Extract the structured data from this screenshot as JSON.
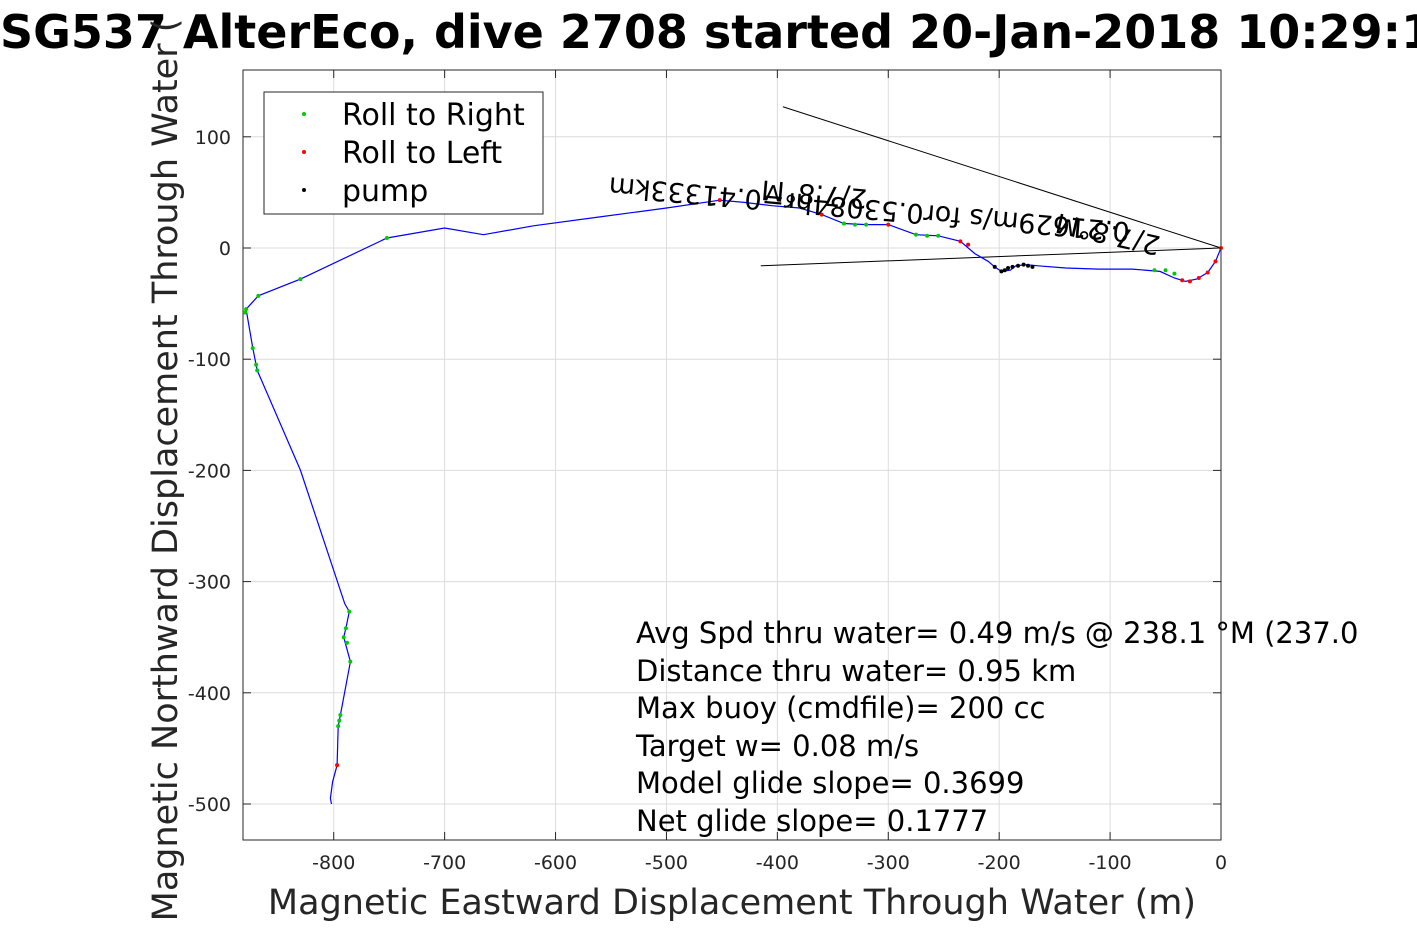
{
  "chart_data": {
    "type": "scatter",
    "title": "SG537 AlterEco, dive 2708 started 20-Jan-2018 10:29:1",
    "xlabel": "Magnetic Eastward Displacement Through Water (m)",
    "ylabel": "Magnetic Northward Displacement Through Water (",
    "xlim": [
      -880,
      0
    ],
    "ylim": [
      -530,
      160
    ],
    "xticks": [
      "-800",
      "-700",
      "-600",
      "-500",
      "-400",
      "-300",
      "-200",
      "-100",
      "0"
    ],
    "yticks": [
      "100",
      "0",
      "-100",
      "-200",
      "-300",
      "-400",
      "-500"
    ],
    "xtick_values": [
      -800,
      -700,
      -600,
      -500,
      -400,
      -300,
      -200,
      -100,
      0
    ],
    "ytick_values": [
      100,
      0,
      -100,
      -200,
      -300,
      -400,
      -500
    ],
    "grid": true,
    "legend": {
      "placement": "top-left",
      "entries": [
        {
          "label": "Roll to Right",
          "color": "#00cc00"
        },
        {
          "label": "Roll to Left",
          "color": "#ff0000"
        },
        {
          "label": "pump",
          "color": "#000000"
        }
      ]
    },
    "track_color": "#0000ff",
    "track": [
      [
        0,
        0
      ],
      [
        -5,
        -12
      ],
      [
        -12,
        -22
      ],
      [
        -22,
        -28
      ],
      [
        -32,
        -30
      ],
      [
        -42,
        -27
      ],
      [
        -55,
        -21
      ],
      [
        -80,
        -19
      ],
      [
        -110,
        -19
      ],
      [
        -140,
        -18
      ],
      [
        -165,
        -16
      ],
      [
        -175,
        -15
      ],
      [
        -185,
        -16
      ],
      [
        -190,
        -20
      ],
      [
        -198,
        -21
      ],
      [
        -204,
        -17
      ],
      [
        -210,
        -12
      ],
      [
        -222,
        -5
      ],
      [
        -235,
        6
      ],
      [
        -255,
        11
      ],
      [
        -275,
        12
      ],
      [
        -300,
        21
      ],
      [
        -320,
        21
      ],
      [
        -340,
        22
      ],
      [
        -360,
        30
      ],
      [
        -380,
        36
      ],
      [
        -405,
        38
      ],
      [
        -430,
        41
      ],
      [
        -452,
        43
      ],
      [
        -500,
        36
      ],
      [
        -560,
        28
      ],
      [
        -620,
        20
      ],
      [
        -665,
        12
      ],
      [
        -700,
        18
      ],
      [
        -752,
        9
      ],
      [
        -830,
        -28
      ],
      [
        -868,
        -43
      ],
      [
        -879,
        -55
      ],
      [
        -873,
        -90
      ],
      [
        -869,
        -110
      ],
      [
        -830,
        -200
      ],
      [
        -790,
        -320
      ],
      [
        -786,
        -327
      ],
      [
        -789,
        -342
      ],
      [
        -791,
        -350
      ],
      [
        -785,
        -372
      ],
      [
        -794,
        -420
      ],
      [
        -796,
        -430
      ],
      [
        -797,
        -465
      ],
      [
        -801,
        -480
      ],
      [
        -803,
        -495
      ],
      [
        -802,
        -500
      ]
    ],
    "roll_right_points": [
      [
        -879,
        -55
      ],
      [
        -880,
        -58
      ],
      [
        -868,
        -43
      ],
      [
        -869,
        -110
      ],
      [
        -870,
        -105
      ],
      [
        -873,
        -90
      ],
      [
        -830,
        -28
      ],
      [
        -752,
        9
      ],
      [
        -786,
        -327
      ],
      [
        -789,
        -342
      ],
      [
        -791,
        -350
      ],
      [
        -788,
        -355
      ],
      [
        -785,
        -372
      ],
      [
        -794,
        -420
      ],
      [
        -795,
        -425
      ],
      [
        -796,
        -430
      ],
      [
        -340,
        22
      ],
      [
        -330,
        21
      ],
      [
        -320,
        21
      ],
      [
        -275,
        12
      ],
      [
        -265,
        11
      ],
      [
        -255,
        11
      ],
      [
        -60,
        -20
      ],
      [
        -50,
        -20
      ],
      [
        -42,
        -23
      ]
    ],
    "roll_left_points": [
      [
        -797,
        -465
      ],
      [
        -452,
        43
      ],
      [
        -360,
        30
      ],
      [
        -300,
        21
      ],
      [
        -235,
        6
      ],
      [
        -228,
        3
      ],
      [
        -35,
        -29
      ],
      [
        -28,
        -30
      ],
      [
        -20,
        -27
      ],
      [
        -12,
        -22
      ],
      [
        -5,
        -12
      ],
      [
        0,
        0
      ]
    ],
    "pump_points": [
      [
        -198,
        -21
      ],
      [
        -195,
        -20
      ],
      [
        -192,
        -18
      ],
      [
        -188,
        -17
      ],
      [
        -183,
        -16
      ],
      [
        -178,
        -15
      ],
      [
        -174,
        -16
      ],
      [
        -170,
        -17
      ],
      [
        -204,
        -17
      ]
    ],
    "reference_lines": [
      {
        "from": [
          -395,
          127
        ],
        "to": [
          0,
          0
        ]
      },
      {
        "from": [
          -415,
          -16
        ],
        "to": [
          0,
          0
        ]
      }
    ],
    "rotated_labels": [
      "2/7.8°M",
      "0.21629m/s for0.53084hr=0.41333km",
      "2/7.8°M"
    ],
    "annotations": [
      "Avg Spd thru water=  0.49 m/s @ 238.1 °M (237.0",
      "Distance thru water=  0.95 km",
      "Max buoy (cmdfile)= 200 cc",
      "Target w= 0.08 m/s",
      "Model glide slope= 0.3699",
      "Net glide slope= 0.1777"
    ]
  }
}
